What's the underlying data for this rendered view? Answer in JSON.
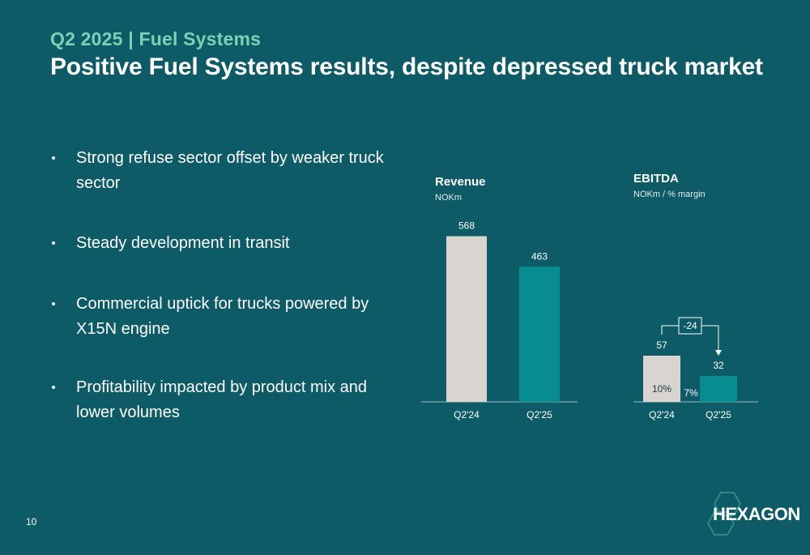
{
  "header": {
    "kicker": "Q2 2025 | Fuel Systems",
    "title": "Positive Fuel Systems results, despite depressed truck market"
  },
  "bullets": [
    "Strong refuse sector offset by weaker truck sector",
    "Steady development in transit",
    "Commercial uptick for trucks powered by X15N engine",
    "Profitability impacted by product mix and lower volumes"
  ],
  "chart_data": [
    {
      "type": "bar",
      "title": "Revenue",
      "subtitle": "NOKm",
      "categories": [
        "Q2'24",
        "Q2'25"
      ],
      "values": [
        568,
        463
      ],
      "data_labels": [
        "568",
        "463"
      ],
      "colors": [
        "#d9d4cf",
        "#078c8f"
      ],
      "ylim": [
        0,
        600
      ]
    },
    {
      "type": "bar",
      "title": "EBITDA",
      "subtitle": "NOKm / % margin",
      "categories": [
        "Q2'24",
        "Q2'25"
      ],
      "values": [
        57,
        32
      ],
      "data_labels": [
        "57",
        "32"
      ],
      "margins": [
        "10%",
        "7%"
      ],
      "change_label": "-24",
      "colors": [
        "#d9d4cf",
        "#078c8f"
      ],
      "ylim": [
        0,
        300
      ]
    }
  ],
  "footer": {
    "page_number": "10",
    "logo_text": "HEXAGON"
  },
  "colors": {
    "background": "#0d5b66",
    "accent": "#7fd1b5",
    "bar_prior": "#d9d4cf",
    "bar_current": "#078c8f"
  }
}
